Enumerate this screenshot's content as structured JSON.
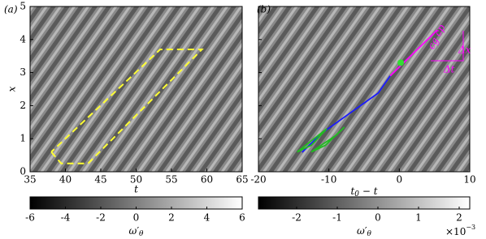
{
  "chart_data": [
    {
      "type": "heatmap",
      "label": "(a)",
      "x_label": "t",
      "y_label": "x",
      "xlim": [
        35,
        65
      ],
      "xticks": [
        35,
        40,
        45,
        50,
        55,
        60,
        65
      ],
      "ylim": [
        0,
        5
      ],
      "yticks": [
        0,
        1,
        2,
        3,
        4,
        5
      ],
      "ytick_labels": true,
      "overlays": [
        {
          "color": "#ffff33",
          "dashed": true,
          "x": [
            38,
            39.4,
            43.2,
            59.3,
            53.4,
            38
          ],
          "y": [
            0.6,
            0.25,
            0.25,
            3.7,
            3.7,
            0.6
          ]
        }
      ],
      "colorbar": {
        "lim": [
          -6,
          6
        ],
        "ticks": [
          -6,
          -4,
          -2,
          0,
          2,
          4,
          6
        ],
        "label": {
          "symbol": "ω′",
          "sub": "θ"
        }
      }
    },
    {
      "type": "heatmap",
      "label": "(b)",
      "x_label": {
        "main": "t",
        "sub": "0",
        "rest": " − t"
      },
      "xlim": [
        -20,
        10
      ],
      "xticks": [
        -20,
        -10,
        0,
        10
      ],
      "ylim": [
        0,
        5
      ],
      "yticks": [
        0,
        1,
        2,
        3,
        4,
        5
      ],
      "ytick_labels": false,
      "overlays": [
        {
          "color": "#ff00ff",
          "dashed": false,
          "x": [
            -1.3,
            5.4
          ],
          "y": [
            2.9,
            4.29
          ]
        },
        {
          "color": "#1a1aff",
          "dashed": false,
          "x": [
            -13.8,
            -11.1,
            -7.1,
            -3.0,
            -1.3
          ],
          "y": [
            0.59,
            1.15,
            1.76,
            2.38,
            2.9
          ]
        },
        {
          "color": "#22bb22",
          "dashed": false,
          "x": [
            -14.5,
            -11.5,
            -10.3,
            -12.5,
            -14.5
          ],
          "y": [
            0.6,
            1.1,
            1.3,
            0.8,
            0.6
          ]
        },
        {
          "color": "#22bb22",
          "dashed": false,
          "x": [
            -12.5,
            -9.0,
            -7.8,
            -10.5,
            -12.5
          ],
          "y": [
            0.6,
            1.1,
            1.35,
            0.8,
            0.6
          ]
        }
      ],
      "point": {
        "color": "#33dd33",
        "x": 0.2,
        "y": 3.3
      },
      "annotations": [
        "Δx",
        "Δt",
        "cg",
        "cp"
      ],
      "colorbar": {
        "lim": [
          -2.94,
          2.26
        ],
        "ticks": [
          -2,
          -1,
          0,
          1,
          2
        ],
        "label": {
          "symbol": "ω′",
          "sub": "θ"
        },
        "multiplier": {
          "base": "×10",
          "exponent": "−3"
        }
      }
    }
  ]
}
